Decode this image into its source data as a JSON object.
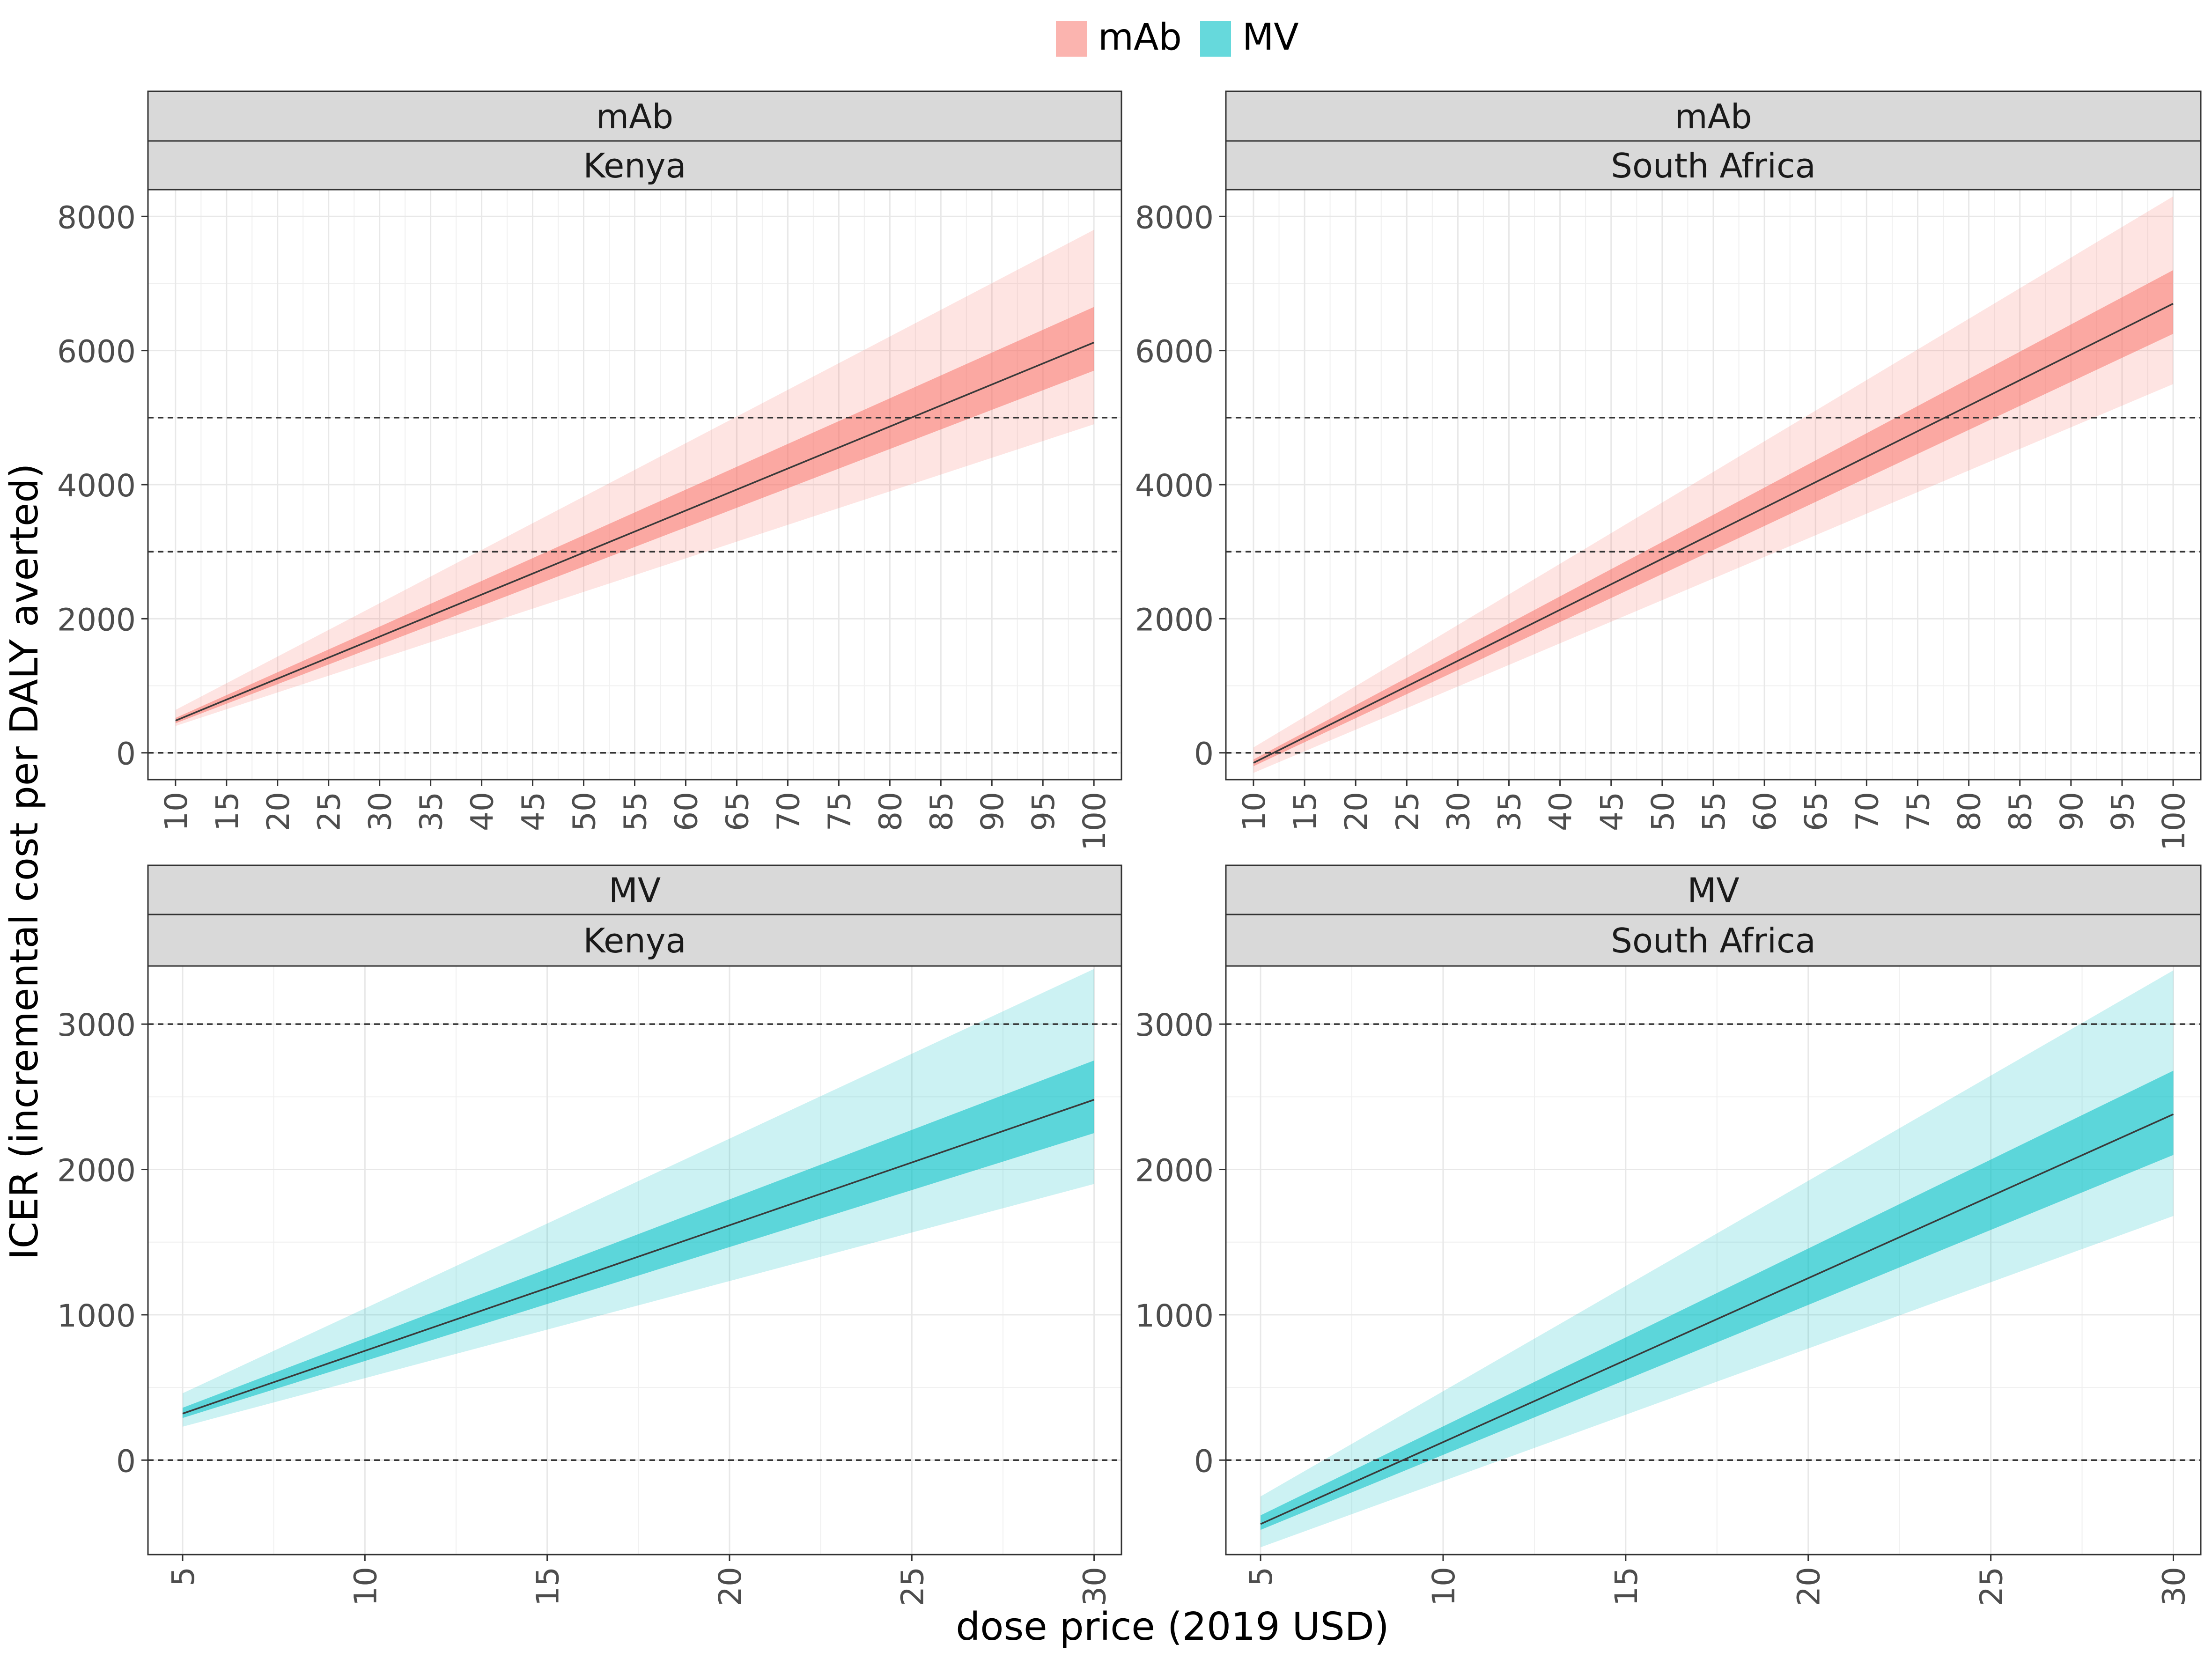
{
  "legend": {
    "position": "top",
    "items": [
      {
        "label": "mAb",
        "color": "#F8766D"
      },
      {
        "label": "MV",
        "color": "#00BFC4"
      }
    ]
  },
  "ylabel": "ICER (incremental cost per DALY averted)",
  "xlabel": "dose price (2019 USD)",
  "chart_data": [
    {
      "type": "line",
      "facet": [
        "mAb",
        "Kenya"
      ],
      "color": "#F8766D",
      "grid": true,
      "xlim": [
        7.3,
        102.7
      ],
      "ylim": [
        -400,
        8400
      ],
      "xticks": [
        10,
        15,
        20,
        25,
        30,
        35,
        40,
        45,
        50,
        55,
        60,
        65,
        70,
        75,
        80,
        85,
        90,
        95,
        100
      ],
      "yticks": [
        0,
        2000,
        4000,
        6000,
        8000
      ],
      "reference_lines": [
        0,
        3000,
        5000
      ],
      "x": [
        10,
        100
      ],
      "median": [
        480,
        6120
      ],
      "inner_band": {
        "lower": [
          440,
          5700
        ],
        "upper": [
          520,
          6650
        ]
      },
      "outer_band": {
        "lower": [
          400,
          4900
        ],
        "upper": [
          640,
          7800
        ]
      }
    },
    {
      "type": "line",
      "facet": [
        "mAb",
        "South Africa"
      ],
      "color": "#F8766D",
      "grid": true,
      "xlim": [
        7.3,
        102.7
      ],
      "ylim": [
        -400,
        8400
      ],
      "xticks": [
        10,
        15,
        20,
        25,
        30,
        35,
        40,
        45,
        50,
        55,
        60,
        65,
        70,
        75,
        80,
        85,
        90,
        95,
        100
      ],
      "yticks": [
        0,
        2000,
        4000,
        6000,
        8000
      ],
      "reference_lines": [
        0,
        3000,
        5000
      ],
      "x": [
        10,
        100
      ],
      "median": [
        -150,
        6700
      ],
      "inner_band": {
        "lower": [
          -200,
          6250
        ],
        "upper": [
          -100,
          7200
        ]
      },
      "outer_band": {
        "lower": [
          -300,
          5500
        ],
        "upper": [
          80,
          8300
        ]
      }
    },
    {
      "type": "line",
      "facet": [
        "MV",
        "Kenya"
      ],
      "color": "#00BFC4",
      "grid": true,
      "xlim": [
        4.05,
        30.75
      ],
      "ylim": [
        -650,
        3400
      ],
      "xticks": [
        5,
        10,
        15,
        20,
        25,
        30
      ],
      "yticks": [
        0,
        1000,
        2000,
        3000
      ],
      "reference_lines": [
        0,
        3000
      ],
      "x": [
        5,
        30
      ],
      "median": [
        320,
        2480
      ],
      "inner_band": {
        "lower": [
          290,
          2250
        ],
        "upper": [
          360,
          2750
        ]
      },
      "outer_band": {
        "lower": [
          230,
          1900
        ],
        "upper": [
          460,
          3380
        ]
      }
    },
    {
      "type": "line",
      "facet": [
        "MV",
        "South Africa"
      ],
      "color": "#00BFC4",
      "grid": true,
      "xlim": [
        4.05,
        30.75
      ],
      "ylim": [
        -650,
        3400
      ],
      "xticks": [
        5,
        10,
        15,
        20,
        25,
        30
      ],
      "yticks": [
        0,
        1000,
        2000,
        3000
      ],
      "reference_lines": [
        0,
        3000
      ],
      "x": [
        5,
        30
      ],
      "median": [
        -440,
        2380
      ],
      "inner_band": {
        "lower": [
          -480,
          2100
        ],
        "upper": [
          -380,
          2680
        ]
      },
      "outer_band": {
        "lower": [
          -600,
          1680
        ],
        "upper": [
          -250,
          3370
        ]
      }
    }
  ]
}
